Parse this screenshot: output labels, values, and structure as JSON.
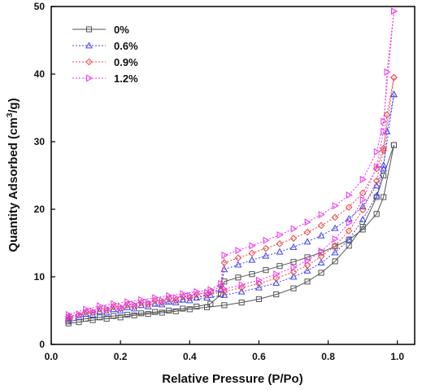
{
  "chart_data": {
    "type": "line",
    "title": "",
    "xlabel": "Relative Pressure (P/Po)",
    "ylabel_main": "Quantity Adsorbed (cm",
    "ylabel_sup": "3",
    "ylabel_end": "/g)",
    "xlim": [
      0.0,
      1.05
    ],
    "ylim": [
      0,
      50
    ],
    "xticks": [
      "0.0",
      "0.2",
      "0.4",
      "0.6",
      "0.8",
      "1.0"
    ],
    "xtick_values": [
      0.0,
      0.2,
      0.4,
      0.6,
      0.8,
      1.0
    ],
    "yticks": [
      "0",
      "10",
      "20",
      "30",
      "40",
      "50"
    ],
    "ytick_values": [
      0,
      10,
      20,
      30,
      40,
      50
    ],
    "grid": false,
    "legend_position": "top-left",
    "series": [
      {
        "name": "0%",
        "color": "#555555",
        "marker": "square",
        "dash": "",
        "adsorption": [
          [
            0.05,
            3.1
          ],
          [
            0.08,
            3.3
          ],
          [
            0.12,
            3.6
          ],
          [
            0.16,
            3.8
          ],
          [
            0.2,
            4.0
          ],
          [
            0.24,
            4.3
          ],
          [
            0.28,
            4.5
          ],
          [
            0.32,
            4.7
          ],
          [
            0.36,
            4.9
          ],
          [
            0.4,
            5.2
          ],
          [
            0.45,
            5.5
          ],
          [
            0.5,
            5.8
          ],
          [
            0.55,
            6.2
          ],
          [
            0.6,
            6.7
          ],
          [
            0.65,
            7.4
          ],
          [
            0.7,
            8.3
          ],
          [
            0.74,
            9.3
          ],
          [
            0.78,
            10.6
          ],
          [
            0.82,
            12.3
          ],
          [
            0.86,
            14.6
          ],
          [
            0.9,
            17.4
          ],
          [
            0.94,
            21.8
          ],
          [
            0.96,
            25.0
          ],
          [
            0.99,
            29.5
          ]
        ],
        "desorption": [
          [
            0.99,
            29.5
          ],
          [
            0.96,
            21.8
          ],
          [
            0.94,
            19.3
          ],
          [
            0.9,
            17.0
          ],
          [
            0.86,
            15.5
          ],
          [
            0.82,
            14.5
          ],
          [
            0.78,
            13.6
          ],
          [
            0.74,
            12.9
          ],
          [
            0.7,
            12.2
          ],
          [
            0.66,
            11.6
          ],
          [
            0.62,
            11.0
          ],
          [
            0.58,
            10.4
          ],
          [
            0.54,
            9.9
          ],
          [
            0.5,
            9.3
          ],
          [
            0.49,
            7.4
          ],
          [
            0.46,
            6.0
          ],
          [
            0.42,
            5.6
          ],
          [
            0.38,
            5.3
          ],
          [
            0.34,
            5.0
          ],
          [
            0.3,
            4.8
          ],
          [
            0.26,
            4.6
          ],
          [
            0.22,
            4.4
          ],
          [
            0.18,
            4.2
          ],
          [
            0.14,
            4.0
          ],
          [
            0.1,
            3.8
          ],
          [
            0.05,
            3.4
          ]
        ]
      },
      {
        "name": "0.6%",
        "color": "#4444ee",
        "marker": "triangle-up",
        "dash": "2,2",
        "adsorption": [
          [
            0.05,
            3.6
          ],
          [
            0.08,
            4.0
          ],
          [
            0.12,
            4.4
          ],
          [
            0.16,
            4.7
          ],
          [
            0.2,
            5.0
          ],
          [
            0.24,
            5.3
          ],
          [
            0.28,
            5.6
          ],
          [
            0.32,
            5.9
          ],
          [
            0.36,
            6.2
          ],
          [
            0.4,
            6.5
          ],
          [
            0.45,
            6.9
          ],
          [
            0.5,
            7.3
          ],
          [
            0.55,
            7.8
          ],
          [
            0.6,
            8.4
          ],
          [
            0.65,
            9.1
          ],
          [
            0.7,
            10.0
          ],
          [
            0.74,
            10.9
          ],
          [
            0.78,
            12.1
          ],
          [
            0.82,
            13.6
          ],
          [
            0.86,
            15.5
          ],
          [
            0.9,
            18.5
          ],
          [
            0.94,
            22.0
          ],
          [
            0.96,
            26.0
          ],
          [
            0.97,
            31.5
          ],
          [
            0.99,
            37.0
          ]
        ],
        "desorption": [
          [
            0.99,
            37.0
          ],
          [
            0.96,
            26.5
          ],
          [
            0.94,
            23.5
          ],
          [
            0.9,
            20.4
          ],
          [
            0.86,
            18.6
          ],
          [
            0.82,
            17.2
          ],
          [
            0.78,
            16.1
          ],
          [
            0.74,
            15.2
          ],
          [
            0.7,
            14.4
          ],
          [
            0.66,
            13.7
          ],
          [
            0.62,
            13.1
          ],
          [
            0.58,
            12.5
          ],
          [
            0.54,
            11.8
          ],
          [
            0.5,
            11.1
          ],
          [
            0.49,
            8.2
          ],
          [
            0.46,
            7.3
          ],
          [
            0.42,
            6.9
          ],
          [
            0.38,
            6.6
          ],
          [
            0.34,
            6.3
          ],
          [
            0.3,
            6.0
          ],
          [
            0.26,
            5.8
          ],
          [
            0.22,
            5.5
          ],
          [
            0.18,
            5.2
          ],
          [
            0.14,
            4.9
          ],
          [
            0.1,
            4.5
          ],
          [
            0.05,
            3.9
          ]
        ]
      },
      {
        "name": "0.9%",
        "color": "#ee4444",
        "marker": "diamond",
        "dash": "2,2",
        "adsorption": [
          [
            0.05,
            3.8
          ],
          [
            0.08,
            4.3
          ],
          [
            0.12,
            4.7
          ],
          [
            0.16,
            5.0
          ],
          [
            0.2,
            5.3
          ],
          [
            0.24,
            5.6
          ],
          [
            0.28,
            5.9
          ],
          [
            0.32,
            6.2
          ],
          [
            0.36,
            6.5
          ],
          [
            0.4,
            6.9
          ],
          [
            0.45,
            7.3
          ],
          [
            0.5,
            7.8
          ],
          [
            0.55,
            8.4
          ],
          [
            0.6,
            9.0
          ],
          [
            0.65,
            9.8
          ],
          [
            0.7,
            10.7
          ],
          [
            0.74,
            11.7
          ],
          [
            0.78,
            13.0
          ],
          [
            0.82,
            14.6
          ],
          [
            0.86,
            16.8
          ],
          [
            0.9,
            19.9
          ],
          [
            0.94,
            24.2
          ],
          [
            0.96,
            28.7
          ],
          [
            0.97,
            34.0
          ],
          [
            0.99,
            39.5
          ]
        ],
        "desorption": [
          [
            0.99,
            39.5
          ],
          [
            0.96,
            29.0
          ],
          [
            0.94,
            26.0
          ],
          [
            0.9,
            22.4
          ],
          [
            0.86,
            20.3
          ],
          [
            0.82,
            18.8
          ],
          [
            0.78,
            17.6
          ],
          [
            0.74,
            16.6
          ],
          [
            0.7,
            15.7
          ],
          [
            0.66,
            14.9
          ],
          [
            0.62,
            14.2
          ],
          [
            0.58,
            13.5
          ],
          [
            0.54,
            12.8
          ],
          [
            0.5,
            12.1
          ],
          [
            0.49,
            8.6
          ],
          [
            0.46,
            7.8
          ],
          [
            0.42,
            7.4
          ],
          [
            0.38,
            7.1
          ],
          [
            0.34,
            6.8
          ],
          [
            0.3,
            6.5
          ],
          [
            0.26,
            6.2
          ],
          [
            0.22,
            5.9
          ],
          [
            0.18,
            5.6
          ],
          [
            0.14,
            5.3
          ],
          [
            0.1,
            4.8
          ],
          [
            0.05,
            4.1
          ]
        ]
      },
      {
        "name": "1.2%",
        "color": "#ee33ee",
        "marker": "triangle-right",
        "dash": "2,2",
        "adsorption": [
          [
            0.05,
            4.0
          ],
          [
            0.08,
            4.5
          ],
          [
            0.12,
            4.9
          ],
          [
            0.16,
            5.3
          ],
          [
            0.2,
            5.6
          ],
          [
            0.24,
            5.9
          ],
          [
            0.28,
            6.2
          ],
          [
            0.32,
            6.5
          ],
          [
            0.36,
            6.9
          ],
          [
            0.4,
            7.2
          ],
          [
            0.45,
            7.7
          ],
          [
            0.5,
            8.2
          ],
          [
            0.55,
            8.8
          ],
          [
            0.6,
            9.5
          ],
          [
            0.65,
            10.4
          ],
          [
            0.7,
            11.4
          ],
          [
            0.74,
            12.4
          ],
          [
            0.78,
            13.8
          ],
          [
            0.82,
            15.6
          ],
          [
            0.86,
            18.0
          ],
          [
            0.9,
            21.4
          ],
          [
            0.94,
            26.3
          ],
          [
            0.96,
            31.5
          ],
          [
            0.97,
            40.3
          ],
          [
            0.99,
            49.3
          ]
        ],
        "desorption": [
          [
            0.99,
            49.3
          ],
          [
            0.96,
            33.0
          ],
          [
            0.94,
            28.5
          ],
          [
            0.9,
            24.4
          ],
          [
            0.86,
            22.1
          ],
          [
            0.82,
            20.5
          ],
          [
            0.78,
            19.2
          ],
          [
            0.74,
            18.1
          ],
          [
            0.7,
            17.1
          ],
          [
            0.66,
            16.2
          ],
          [
            0.62,
            15.4
          ],
          [
            0.58,
            14.6
          ],
          [
            0.54,
            13.9
          ],
          [
            0.5,
            13.2
          ],
          [
            0.49,
            9.0
          ],
          [
            0.46,
            8.1
          ],
          [
            0.42,
            7.8
          ],
          [
            0.38,
            7.5
          ],
          [
            0.34,
            7.2
          ],
          [
            0.3,
            6.9
          ],
          [
            0.26,
            6.6
          ],
          [
            0.22,
            6.3
          ],
          [
            0.18,
            6.0
          ],
          [
            0.14,
            5.7
          ],
          [
            0.1,
            5.2
          ],
          [
            0.05,
            4.4
          ]
        ]
      }
    ]
  }
}
